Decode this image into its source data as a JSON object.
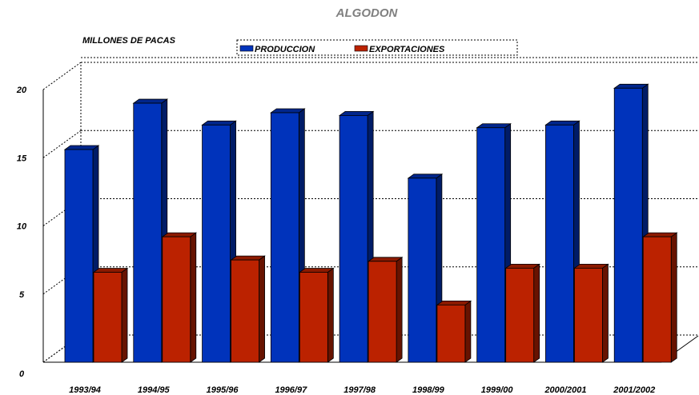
{
  "chart_data": {
    "type": "bar",
    "title": "ALGODON",
    "ylabel": "MILLONES DE PACAS",
    "xlabel": "",
    "ylim": [
      0,
      20
    ],
    "yticks": [
      "0",
      "5",
      "10",
      "15",
      "20"
    ],
    "grid": true,
    "legend_position": "top",
    "categories": [
      "1993/94",
      "1994/95",
      "1995/96",
      "1996/97",
      "1997/98",
      "1998/99",
      "1999/00",
      "2000/2001",
      "2001/2002"
    ],
    "series": [
      {
        "name": "PRODUCCION",
        "color": "#0033bb",
        "values": [
          15.6,
          19.0,
          17.4,
          18.3,
          18.1,
          13.5,
          17.2,
          17.4,
          20.1
        ]
      },
      {
        "name": "EXPORTACIONES",
        "color": "#bb2200",
        "values": [
          6.6,
          9.2,
          7.5,
          6.6,
          7.4,
          4.2,
          6.9,
          6.9,
          9.2
        ]
      }
    ]
  }
}
